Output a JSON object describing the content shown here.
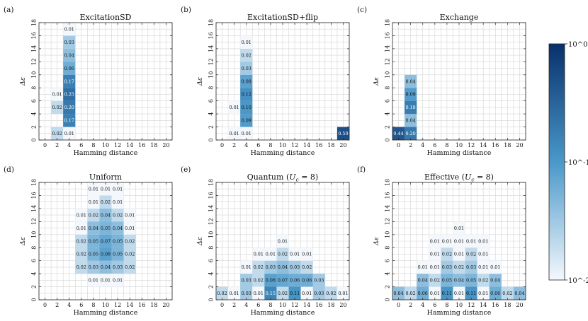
{
  "colorbar": {
    "label_top": "10^0",
    "label_mid": "10^-1",
    "label_bottom": "10^-2",
    "vmin": 0.01,
    "vmax": 1,
    "scale": "log",
    "color_low": "#f4f8fd",
    "color_high": "#08306b"
  },
  "chart_data": [
    {
      "type": "heatmap",
      "panel_label": "(a)",
      "title": "ExcitationSD",
      "xlabel": "Hamming distance",
      "ylabel": "Δε",
      "xticks": [
        "0",
        "2",
        "4",
        "6",
        "8",
        "10",
        "12",
        "14",
        "16",
        "18",
        "20"
      ],
      "yticks": [
        "0",
        "2",
        "4",
        "6",
        "8",
        "10",
        "12",
        "14",
        "16",
        "18"
      ],
      "xlim": [
        -1,
        21
      ],
      "ylim": [
        0,
        18
      ],
      "cells": [
        {
          "x": 2,
          "y": 1,
          "v": 0.02,
          "label": "0.02"
        },
        {
          "x": 4,
          "y": 1,
          "v": 0.01,
          "label": "0.01"
        },
        {
          "x": 4,
          "y": 3,
          "v": 0.17,
          "label": "0.17"
        },
        {
          "x": 2,
          "y": 5,
          "v": 0.02,
          "label": "0.02"
        },
        {
          "x": 4,
          "y": 5,
          "v": 0.2,
          "label": "0.20"
        },
        {
          "x": 2,
          "y": 7,
          "v": 0.01,
          "label": "0.01"
        },
        {
          "x": 4,
          "y": 7,
          "v": 0.25,
          "label": "0.25"
        },
        {
          "x": 4,
          "y": 9,
          "v": 0.17,
          "label": "0.17"
        },
        {
          "x": 4,
          "y": 11,
          "v": 0.06,
          "label": "0.06"
        },
        {
          "x": 4,
          "y": 13,
          "v": 0.04,
          "label": "0.04"
        },
        {
          "x": 4,
          "y": 15,
          "v": 0.03,
          "label": "0.03"
        },
        {
          "x": 4,
          "y": 17,
          "v": 0.01,
          "label": "0.01"
        }
      ]
    },
    {
      "type": "heatmap",
      "panel_label": "(b)",
      "title": "ExcitationSD+flip",
      "xlabel": "Hamming distance",
      "ylabel": "Δε",
      "xticks": [
        "0",
        "2",
        "4",
        "6",
        "8",
        "10",
        "12",
        "14",
        "16",
        "18",
        "20"
      ],
      "yticks": [
        "0",
        "2",
        "4",
        "6",
        "8",
        "10",
        "12",
        "14",
        "16",
        "18"
      ],
      "xlim": [
        -1,
        21
      ],
      "ylim": [
        0,
        18
      ],
      "cells": [
        {
          "x": 2,
          "y": 1,
          "v": 0.01,
          "label": "0.01"
        },
        {
          "x": 4,
          "y": 1,
          "v": 0.01,
          "label": "0.01"
        },
        {
          "x": 20,
          "y": 1,
          "v": 0.5,
          "label": "0.50"
        },
        {
          "x": 4,
          "y": 3,
          "v": 0.09,
          "label": "0.09"
        },
        {
          "x": 2,
          "y": 5,
          "v": 0.01,
          "label": "0.01"
        },
        {
          "x": 4,
          "y": 5,
          "v": 0.1,
          "label": "0.10"
        },
        {
          "x": 4,
          "y": 7,
          "v": 0.12,
          "label": "0.12"
        },
        {
          "x": 4,
          "y": 9,
          "v": 0.08,
          "label": "0.08"
        },
        {
          "x": 4,
          "y": 11,
          "v": 0.03,
          "label": "0.03"
        },
        {
          "x": 4,
          "y": 13,
          "v": 0.02,
          "label": "0.02"
        },
        {
          "x": 4,
          "y": 15,
          "v": 0.01,
          "label": "0.01"
        }
      ]
    },
    {
      "type": "heatmap",
      "panel_label": "(c)",
      "title": "Exchange",
      "xlabel": "Hamming distance",
      "ylabel": "Δε",
      "xticks": [
        "0",
        "2",
        "4",
        "6",
        "8",
        "10",
        "12",
        "14",
        "16",
        "18",
        "20"
      ],
      "yticks": [
        "0",
        "2",
        "4",
        "6",
        "8",
        "10",
        "12",
        "14",
        "16",
        "18"
      ],
      "xlim": [
        -1,
        21
      ],
      "ylim": [
        0,
        18
      ],
      "cells": [
        {
          "x": 0,
          "y": 1,
          "v": 0.44,
          "label": "0.44"
        },
        {
          "x": 2,
          "y": 1,
          "v": 0.2,
          "label": "0.20"
        },
        {
          "x": 2,
          "y": 3,
          "v": 0.04,
          "label": "0.04"
        },
        {
          "x": 2,
          "y": 5,
          "v": 0.18,
          "label": "0.18"
        },
        {
          "x": 2,
          "y": 7,
          "v": 0.09,
          "label": "0.09"
        },
        {
          "x": 2,
          "y": 9,
          "v": 0.04,
          "label": "0.04"
        }
      ]
    },
    {
      "type": "heatmap",
      "panel_label": "(d)",
      "title": "Uniform",
      "xlabel": "Hamming distance",
      "ylabel": "Δε",
      "xticks": [
        "0",
        "2",
        "4",
        "6",
        "8",
        "10",
        "12",
        "14",
        "16",
        "18",
        "20"
      ],
      "yticks": [
        "0",
        "2",
        "4",
        "6",
        "8",
        "10",
        "12",
        "14",
        "16",
        "18"
      ],
      "xlim": [
        -1,
        21
      ],
      "ylim": [
        0,
        18
      ],
      "cells": [
        {
          "x": 8,
          "y": 3,
          "v": 0.01,
          "label": "0.01"
        },
        {
          "x": 10,
          "y": 3,
          "v": 0.01,
          "label": "0.01"
        },
        {
          "x": 12,
          "y": 3,
          "v": 0.01,
          "label": "0.01"
        },
        {
          "x": 6,
          "y": 5,
          "v": 0.02,
          "label": "0.02"
        },
        {
          "x": 8,
          "y": 5,
          "v": 0.03,
          "label": "0.03"
        },
        {
          "x": 10,
          "y": 5,
          "v": 0.04,
          "label": "0.04"
        },
        {
          "x": 12,
          "y": 5,
          "v": 0.03,
          "label": "0.03"
        },
        {
          "x": 14,
          "y": 5,
          "v": 0.02,
          "label": "0.02"
        },
        {
          "x": 6,
          "y": 7,
          "v": 0.02,
          "label": "0.02"
        },
        {
          "x": 8,
          "y": 7,
          "v": 0.05,
          "label": "0.05"
        },
        {
          "x": 10,
          "y": 7,
          "v": 0.08,
          "label": "0.08"
        },
        {
          "x": 12,
          "y": 7,
          "v": 0.05,
          "label": "0.05"
        },
        {
          "x": 14,
          "y": 7,
          "v": 0.02,
          "label": "0.02"
        },
        {
          "x": 6,
          "y": 9,
          "v": 0.02,
          "label": "0.02"
        },
        {
          "x": 8,
          "y": 9,
          "v": 0.05,
          "label": "0.05"
        },
        {
          "x": 10,
          "y": 9,
          "v": 0.07,
          "label": "0.07"
        },
        {
          "x": 12,
          "y": 9,
          "v": 0.05,
          "label": "0.05"
        },
        {
          "x": 14,
          "y": 9,
          "v": 0.02,
          "label": "0.02"
        },
        {
          "x": 6,
          "y": 11,
          "v": 0.01,
          "label": "0.01"
        },
        {
          "x": 8,
          "y": 11,
          "v": 0.04,
          "label": "0.04"
        },
        {
          "x": 10,
          "y": 11,
          "v": 0.05,
          "label": "0.05"
        },
        {
          "x": 12,
          "y": 11,
          "v": 0.04,
          "label": "0.04"
        },
        {
          "x": 14,
          "y": 11,
          "v": 0.01,
          "label": "0.01"
        },
        {
          "x": 6,
          "y": 13,
          "v": 0.01,
          "label": "0.01"
        },
        {
          "x": 8,
          "y": 13,
          "v": 0.02,
          "label": "0.02"
        },
        {
          "x": 10,
          "y": 13,
          "v": 0.04,
          "label": "0.04"
        },
        {
          "x": 12,
          "y": 13,
          "v": 0.02,
          "label": "0.02"
        },
        {
          "x": 14,
          "y": 13,
          "v": 0.01,
          "label": "0.01"
        },
        {
          "x": 8,
          "y": 15,
          "v": 0.01,
          "label": "0.01"
        },
        {
          "x": 10,
          "y": 15,
          "v": 0.02,
          "label": "0.02"
        },
        {
          "x": 12,
          "y": 15,
          "v": 0.01,
          "label": "0.01"
        },
        {
          "x": 8,
          "y": 17,
          "v": 0.01,
          "label": "0.01"
        },
        {
          "x": 10,
          "y": 17,
          "v": 0.01,
          "label": "0.01"
        },
        {
          "x": 12,
          "y": 17,
          "v": 0.01,
          "label": "0.01"
        }
      ]
    },
    {
      "type": "heatmap",
      "panel_label": "(e)",
      "title": "Quantum (U_c = 8)",
      "xlabel": "Hamming distance",
      "ylabel": "Δε",
      "xticks": [
        "0",
        "2",
        "4",
        "6",
        "8",
        "10",
        "12",
        "14",
        "16",
        "18",
        "20"
      ],
      "yticks": [
        "0",
        "2",
        "4",
        "6",
        "8",
        "10",
        "12",
        "14",
        "16",
        "18"
      ],
      "xlim": [
        -1,
        21
      ],
      "ylim": [
        0,
        18
      ],
      "cells": [
        {
          "x": 0,
          "y": 1,
          "v": 0.02,
          "label": "0.02"
        },
        {
          "x": 2,
          "y": 1,
          "v": 0.01,
          "label": "0.01"
        },
        {
          "x": 4,
          "y": 1,
          "v": 0.03,
          "label": "0.03"
        },
        {
          "x": 6,
          "y": 1,
          "v": 0.01,
          "label": "0.01"
        },
        {
          "x": 8,
          "y": 1,
          "v": 0.15,
          "label": "0.15"
        },
        {
          "x": 10,
          "y": 1,
          "v": 0.02,
          "label": "0.02"
        },
        {
          "x": 12,
          "y": 1,
          "v": 0.11,
          "label": "0.11"
        },
        {
          "x": 14,
          "y": 1,
          "v": 0.01,
          "label": "0.01"
        },
        {
          "x": 16,
          "y": 1,
          "v": 0.03,
          "label": "0.03"
        },
        {
          "x": 18,
          "y": 1,
          "v": 0.02,
          "label": "0.02"
        },
        {
          "x": 20,
          "y": 1,
          "v": 0.01,
          "label": "0.01"
        },
        {
          "x": 4,
          "y": 3,
          "v": 0.03,
          "label": "0.03"
        },
        {
          "x": 6,
          "y": 3,
          "v": 0.02,
          "label": "0.02"
        },
        {
          "x": 8,
          "y": 3,
          "v": 0.08,
          "label": "0.08"
        },
        {
          "x": 10,
          "y": 3,
          "v": 0.07,
          "label": "0.07"
        },
        {
          "x": 12,
          "y": 3,
          "v": 0.06,
          "label": "0.06"
        },
        {
          "x": 14,
          "y": 3,
          "v": 0.06,
          "label": "0.06"
        },
        {
          "x": 16,
          "y": 3,
          "v": 0.03,
          "label": "0.03"
        },
        {
          "x": 4,
          "y": 5,
          "v": 0.01,
          "label": "0.01"
        },
        {
          "x": 6,
          "y": 5,
          "v": 0.02,
          "label": "0.02"
        },
        {
          "x": 8,
          "y": 5,
          "v": 0.03,
          "label": "0.03"
        },
        {
          "x": 10,
          "y": 5,
          "v": 0.04,
          "label": "0.04"
        },
        {
          "x": 12,
          "y": 5,
          "v": 0.03,
          "label": "0.03"
        },
        {
          "x": 14,
          "y": 5,
          "v": 0.02,
          "label": "0.02"
        },
        {
          "x": 6,
          "y": 7,
          "v": 0.01,
          "label": "0.01"
        },
        {
          "x": 8,
          "y": 7,
          "v": 0.01,
          "label": "0.01"
        },
        {
          "x": 10,
          "y": 7,
          "v": 0.02,
          "label": "0.02"
        },
        {
          "x": 12,
          "y": 7,
          "v": 0.01,
          "label": "0.01"
        },
        {
          "x": 14,
          "y": 7,
          "v": 0.01,
          "label": "0.01"
        },
        {
          "x": 10,
          "y": 9,
          "v": 0.01,
          "label": "0.01"
        }
      ]
    },
    {
      "type": "heatmap",
      "panel_label": "(f)",
      "title": "Effective (U_c = 8)",
      "xlabel": "Hamming distance",
      "ylabel": "Δε",
      "xticks": [
        "0",
        "2",
        "4",
        "6",
        "8",
        "10",
        "12",
        "14",
        "16",
        "18",
        "20"
      ],
      "yticks": [
        "0",
        "2",
        "4",
        "6",
        "8",
        "10",
        "12",
        "14",
        "16",
        "18"
      ],
      "xlim": [
        -1,
        21
      ],
      "ylim": [
        0,
        18
      ],
      "cells": [
        {
          "x": 0,
          "y": 1,
          "v": 0.04,
          "label": "0.04"
        },
        {
          "x": 2,
          "y": 1,
          "v": 0.02,
          "label": "0.02"
        },
        {
          "x": 4,
          "y": 1,
          "v": 0.06,
          "label": "0.06"
        },
        {
          "x": 6,
          "y": 1,
          "v": 0.01,
          "label": "0.01"
        },
        {
          "x": 8,
          "y": 1,
          "v": 0.11,
          "label": "0.11"
        },
        {
          "x": 10,
          "y": 1,
          "v": 0.01,
          "label": "0.01"
        },
        {
          "x": 12,
          "y": 1,
          "v": 0.11,
          "label": "0.11"
        },
        {
          "x": 14,
          "y": 1,
          "v": 0.01,
          "label": "0.01"
        },
        {
          "x": 16,
          "y": 1,
          "v": 0.06,
          "label": "0.06"
        },
        {
          "x": 18,
          "y": 1,
          "v": 0.02,
          "label": "0.02"
        },
        {
          "x": 20,
          "y": 1,
          "v": 0.04,
          "label": "0.04"
        },
        {
          "x": 4,
          "y": 3,
          "v": 0.04,
          "label": "0.04"
        },
        {
          "x": 6,
          "y": 3,
          "v": 0.02,
          "label": "0.02"
        },
        {
          "x": 8,
          "y": 3,
          "v": 0.05,
          "label": "0.05"
        },
        {
          "x": 10,
          "y": 3,
          "v": 0.04,
          "label": "0.04"
        },
        {
          "x": 12,
          "y": 3,
          "v": 0.05,
          "label": "0.05"
        },
        {
          "x": 14,
          "y": 3,
          "v": 0.02,
          "label": "0.02"
        },
        {
          "x": 16,
          "y": 3,
          "v": 0.04,
          "label": "0.04"
        },
        {
          "x": 4,
          "y": 5,
          "v": 0.01,
          "label": "0.01"
        },
        {
          "x": 6,
          "y": 5,
          "v": 0.01,
          "label": "0.01"
        },
        {
          "x": 8,
          "y": 5,
          "v": 0.03,
          "label": "0.03"
        },
        {
          "x": 10,
          "y": 5,
          "v": 0.02,
          "label": "0.02"
        },
        {
          "x": 12,
          "y": 5,
          "v": 0.03,
          "label": "0.03"
        },
        {
          "x": 14,
          "y": 5,
          "v": 0.01,
          "label": "0.01"
        },
        {
          "x": 16,
          "y": 5,
          "v": 0.01,
          "label": "0.01"
        },
        {
          "x": 6,
          "y": 7,
          "v": 0.01,
          "label": "0.01"
        },
        {
          "x": 8,
          "y": 7,
          "v": 0.02,
          "label": "0.02"
        },
        {
          "x": 10,
          "y": 7,
          "v": 0.01,
          "label": "0.01"
        },
        {
          "x": 12,
          "y": 7,
          "v": 0.02,
          "label": "0.02"
        },
        {
          "x": 14,
          "y": 7,
          "v": 0.01,
          "label": "0.01"
        },
        {
          "x": 6,
          "y": 9,
          "v": 0.01,
          "label": "0.01"
        },
        {
          "x": 8,
          "y": 9,
          "v": 0.01,
          "label": "0.01"
        },
        {
          "x": 10,
          "y": 9,
          "v": 0.01,
          "label": "0.01"
        },
        {
          "x": 12,
          "y": 9,
          "v": 0.01,
          "label": "0.01"
        },
        {
          "x": 14,
          "y": 9,
          "v": 0.01,
          "label": "0.01"
        },
        {
          "x": 10,
          "y": 11,
          "v": 0.01,
          "label": "0.01"
        }
      ]
    }
  ]
}
